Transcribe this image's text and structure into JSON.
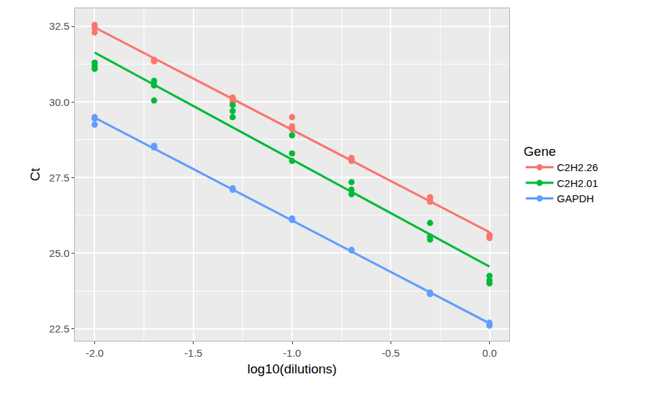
{
  "chart_data": {
    "type": "scatter",
    "x_label": "log10(dilutions)",
    "y_label": "Ct",
    "legend_title": "Gene",
    "legend": "right",
    "grid": true,
    "xlim": [
      -2.1,
      0.1
    ],
    "ylim": [
      22.1,
      33.1
    ],
    "xticks": [
      {
        "value": -2,
        "label": "-2.0"
      },
      {
        "value": -1.5,
        "label": "-1.5"
      },
      {
        "value": -1,
        "label": "-1.0"
      },
      {
        "value": -0.5,
        "label": "-0.5"
      },
      {
        "value": 0,
        "label": "0.0"
      }
    ],
    "yticks": [
      22.5,
      {
        "value": 25,
        "label": "25.0"
      },
      27.5,
      {
        "value": 30,
        "label": "30.0"
      },
      32.5
    ],
    "series": [
      {
        "name": "C2H2.26",
        "color": "#F8766D",
        "marker": "circle",
        "line_style": "solid",
        "x": [
          -2,
          -2,
          -2,
          -1.699,
          -1.699,
          -1.699,
          -1.301,
          -1.301,
          -1.301,
          -1,
          -1,
          -1,
          -0.699,
          -0.699,
          -0.699,
          -0.301,
          -0.301,
          -0.301,
          0,
          0,
          0
        ],
        "values": [
          32.55,
          32.45,
          32.3,
          31.35,
          31.35,
          31.4,
          30.15,
          30.1,
          30.0,
          29.5,
          29.2,
          29.1,
          28.15,
          28.1,
          28.05,
          26.85,
          26.75,
          26.7,
          25.6,
          25.55,
          25.5
        ]
      },
      {
        "name": "C2H2.01",
        "color": "#00BA38",
        "marker": "circle",
        "line_style": "solid",
        "x": [
          -2,
          -2,
          -2,
          -1.699,
          -1.699,
          -1.699,
          -1.301,
          -1.301,
          -1.301,
          -1,
          -1,
          -1,
          -0.699,
          -0.699,
          -0.699,
          -0.301,
          -0.301,
          -0.301,
          0,
          0,
          0
        ],
        "values": [
          31.3,
          31.2,
          31.1,
          30.7,
          30.55,
          30.05,
          29.9,
          29.7,
          29.5,
          28.9,
          28.3,
          28.05,
          27.35,
          27.1,
          26.95,
          26.0,
          25.55,
          25.45,
          24.25,
          24.1,
          24.0
        ]
      },
      {
        "name": "GAPDH",
        "color": "#619CFF",
        "marker": "circle",
        "line_style": "solid",
        "x": [
          -2,
          -2,
          -2,
          -1.699,
          -1.699,
          -1.699,
          -1.301,
          -1.301,
          -1.301,
          -1,
          -1,
          -1,
          -0.699,
          -0.699,
          -0.699,
          -0.301,
          -0.301,
          -0.301,
          0,
          0,
          0
        ],
        "values": [
          29.5,
          29.45,
          29.25,
          28.55,
          28.5,
          28.5,
          27.15,
          27.1,
          27.1,
          26.15,
          26.1,
          26.1,
          25.1,
          25.1,
          25.1,
          23.7,
          23.65,
          23.65,
          22.7,
          22.65,
          22.6
        ]
      }
    ]
  }
}
